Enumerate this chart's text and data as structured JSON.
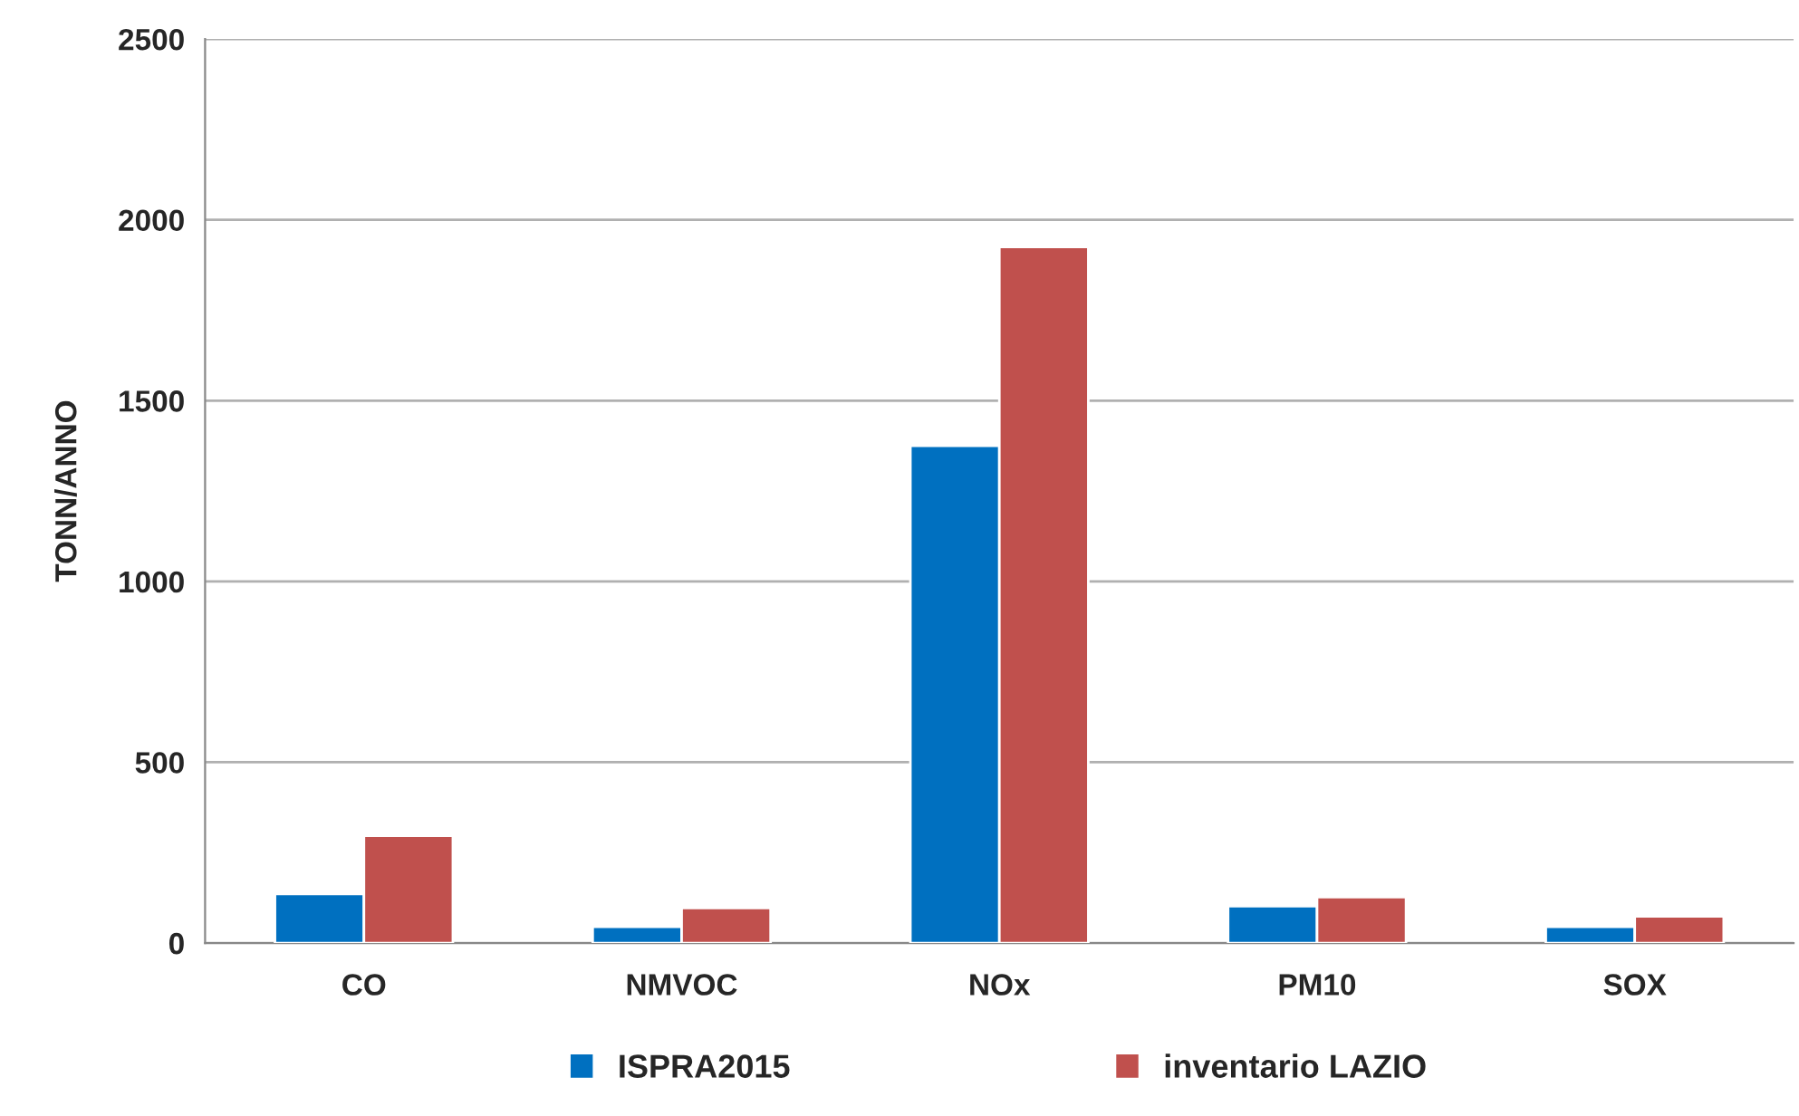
{
  "chart_data": {
    "type": "bar",
    "ylabel": "TONN/ANNO",
    "categories": [
      "CO",
      "NMVOC",
      "NOx",
      "PM10",
      "SOX"
    ],
    "series": [
      {
        "name": "ISPRA2015",
        "color": "#0070c0",
        "values": [
          136,
          45,
          1375,
          102,
          45
        ]
      },
      {
        "name": "inventario LAZIO",
        "color": "#c0504d",
        "values": [
          297,
          97,
          1925,
          127,
          74
        ]
      }
    ],
    "ylim": [
      0,
      2500
    ],
    "yticks": [
      0,
      500,
      1000,
      1500,
      2000,
      2500
    ],
    "grid": "y",
    "legend": "bottom"
  }
}
